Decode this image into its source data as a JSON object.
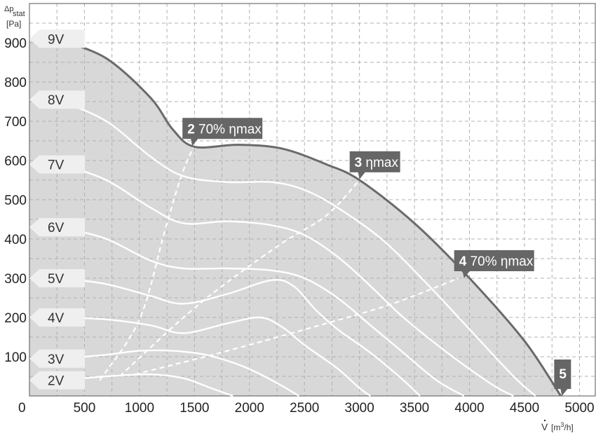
{
  "chart_data": {
    "type": "line",
    "ylabel": "Δp",
    "ylabel_sub": "stat",
    "ylabel_unit": "[Pa]",
    "xlabel_prefix": "V",
    "xlabel_unit": "[m",
    "xlabel_unit_sup": "3",
    "xlabel_unit_end": "/h]",
    "xlim": [
      0,
      5150
    ],
    "ylim": [
      0,
      1000
    ],
    "x_ticks": [
      "0",
      "500",
      "1000",
      "1500",
      "2000",
      "2500",
      "3000",
      "3500",
      "4000",
      "4500",
      "5000"
    ],
    "y_ticks": [
      "100",
      "200",
      "300",
      "400",
      "500",
      "600",
      "700",
      "800",
      "900"
    ],
    "grid": true,
    "colors": {
      "fill": "#d8d8d8",
      "envelope": "#6a6a6a",
      "curve": "#ffffff",
      "label_bg": "#efefef",
      "point_bg": "#666666",
      "grid": "#b0b0b0"
    },
    "series": [
      {
        "name": "9V",
        "label_y": 910,
        "x": [
          300,
          700,
          1100,
          1300,
          1500,
          1900,
          2300,
          2700,
          3000,
          3500,
          4000,
          4500,
          4830
        ],
        "y": [
          905,
          860,
          760,
          680,
          635,
          640,
          630,
          590,
          550,
          440,
          300,
          140,
          0
        ]
      },
      {
        "name": "8V",
        "label_y": 755,
        "x": [
          300,
          700,
          1100,
          1400,
          1800,
          2200,
          2500,
          2800,
          3200,
          3600,
          4000,
          4400,
          4600
        ],
        "y": [
          750,
          700,
          610,
          560,
          545,
          545,
          525,
          480,
          400,
          290,
          170,
          50,
          0
        ]
      },
      {
        "name": "7V",
        "label_y": 590,
        "x": [
          300,
          700,
          1100,
          1400,
          1800,
          2200,
          2500,
          2800,
          3100,
          3400,
          3800,
          4200,
          4400
        ],
        "y": [
          590,
          550,
          480,
          440,
          445,
          435,
          410,
          355,
          280,
          200,
          110,
          30,
          0
        ]
      },
      {
        "name": "6V",
        "label_y": 430,
        "x": [
          300,
          700,
          1100,
          1400,
          1800,
          2200,
          2500,
          2800,
          3100,
          3400,
          3700,
          3950
        ],
        "y": [
          430,
          400,
          345,
          325,
          325,
          320,
          300,
          250,
          180,
          110,
          40,
          0
        ]
      },
      {
        "name": "5V",
        "label_y": 300,
        "x": [
          300,
          700,
          1100,
          1400,
          1800,
          2200,
          2400,
          2600,
          2800,
          3100,
          3400,
          3550
        ],
        "y": [
          300,
          285,
          255,
          235,
          260,
          295,
          280,
          220,
          170,
          110,
          40,
          0
        ]
      },
      {
        "name": "4V",
        "label_y": 200,
        "x": [
          300,
          700,
          1100,
          1400,
          1800,
          2100,
          2300,
          2500,
          2800,
          3000,
          3100
        ],
        "y": [
          200,
          195,
          180,
          160,
          185,
          200,
          175,
          130,
          70,
          20,
          0
        ]
      },
      {
        "name": "3V",
        "label_y": 95,
        "x": [
          300,
          700,
          1000,
          1300,
          1600,
          1900,
          2100,
          2300,
          2450
        ],
        "y": [
          95,
          105,
          115,
          115,
          105,
          80,
          55,
          25,
          0
        ]
      },
      {
        "name": "2V",
        "label_y": 40,
        "x": [
          300,
          700,
          1100,
          1400,
          1650,
          1850
        ],
        "y": [
          40,
          50,
          55,
          45,
          20,
          0
        ]
      }
    ],
    "operating_lines": [
      {
        "x": [
          640,
          1000,
          1230,
          1380,
          1500
        ],
        "y": [
          40,
          195,
          420,
          560,
          640
        ]
      },
      {
        "x": [
          820,
          1400,
          1800,
          2300,
          2700,
          3000
        ],
        "y": [
          50,
          200,
          290,
          390,
          460,
          550
        ]
      },
      {
        "x": [
          960,
          1800,
          2700,
          3300,
          3900
        ],
        "y": [
          55,
          115,
          185,
          235,
          300
        ]
      }
    ],
    "operating_points": [
      {
        "num": "2",
        "text": "70% ηmax",
        "x": 1480,
        "y": 637
      },
      {
        "num": "3",
        "text": "ηmax",
        "x": 3000,
        "y": 552
      },
      {
        "num": "4",
        "text": "70% ηmax",
        "x": 3950,
        "y": 300
      },
      {
        "num": "5",
        "text": "",
        "x": 4840,
        "y": 0
      }
    ]
  }
}
